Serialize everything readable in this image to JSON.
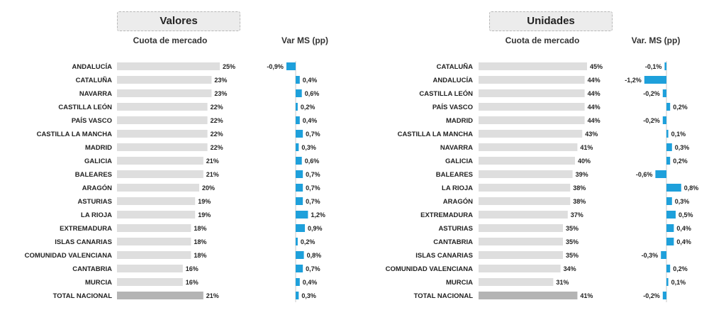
{
  "chart_data": [
    {
      "type": "bar",
      "title": "Valores",
      "share_label": "Cuota de mercado",
      "var_label": "Var MS (pp)",
      "categories": [
        "ANDALUCÍA",
        "CATALUÑA",
        "NAVARRA",
        "CASTILLA LEÓN",
        "PAÍS VASCO",
        "CASTILLA LA MANCHA",
        "MADRID",
        "GALICIA",
        "BALEARES",
        "ARAGÓN",
        "ASTURIAS",
        "LA RIOJA",
        "EXTREMADURA",
        "ISLAS CANARIAS",
        "COMUNIDAD VALENCIANA",
        "CANTABRIA",
        "MURCIA",
        "TOTAL NACIONAL"
      ],
      "series": [
        {
          "name": "Cuota de mercado",
          "values": [
            25,
            23,
            23,
            22,
            22,
            22,
            22,
            21,
            21,
            20,
            19,
            19,
            18,
            18,
            18,
            16,
            16,
            21
          ],
          "labels": [
            "25%",
            "23%",
            "23%",
            "22%",
            "22%",
            "22%",
            "22%",
            "21%",
            "21%",
            "20%",
            "19%",
            "19%",
            "18%",
            "18%",
            "18%",
            "16%",
            "16%",
            "21%"
          ]
        },
        {
          "name": "Var MS (pp)",
          "values": [
            -0.9,
            0.4,
            0.6,
            0.2,
            0.4,
            0.7,
            0.3,
            0.6,
            0.7,
            0.7,
            0.7,
            1.2,
            0.9,
            0.2,
            0.8,
            0.7,
            0.4,
            0.3
          ],
          "labels": [
            "-0,9%",
            "0,4%",
            "0,6%",
            "0,2%",
            "0,4%",
            "0,7%",
            "0,3%",
            "0,6%",
            "0,7%",
            "0,7%",
            "0,7%",
            "1,2%",
            "0,9%",
            "0,2%",
            "0,8%",
            "0,7%",
            "0,4%",
            "0,3%"
          ]
        }
      ],
      "colors": {
        "share": "#dedede",
        "total": "#b4b4b4",
        "var": "#1ea0db"
      }
    },
    {
      "type": "bar",
      "title": "Unidades",
      "share_label": "Cuota de mercado",
      "var_label": "Var. MS (pp)",
      "categories": [
        "CATALUÑA",
        "ANDALUCÍA",
        "CASTILLA LEÓN",
        "PAÍS VASCO",
        "MADRID",
        "CASTILLA LA MANCHA",
        "NAVARRA",
        "GALICIA",
        "BALEARES",
        "LA RIOJA",
        "ARAGÓN",
        "EXTREMADURA",
        "ASTURIAS",
        "CANTABRIA",
        "ISLAS CANARIAS",
        "COMUNIDAD VALENCIANA",
        "MURCIA",
        "TOTAL NACIONAL"
      ],
      "series": [
        {
          "name": "Cuota de mercado",
          "values": [
            45,
            44,
            44,
            44,
            44,
            43,
            41,
            40,
            39,
            38,
            38,
            37,
            35,
            35,
            35,
            34,
            31,
            41
          ],
          "labels": [
            "45%",
            "44%",
            "44%",
            "44%",
            "44%",
            "43%",
            "41%",
            "40%",
            "39%",
            "38%",
            "38%",
            "37%",
            "35%",
            "35%",
            "35%",
            "34%",
            "31%",
            "41%"
          ]
        },
        {
          "name": "Var. MS (pp)",
          "values": [
            -0.1,
            -1.2,
            -0.2,
            0.2,
            -0.2,
            0.1,
            0.3,
            0.2,
            -0.6,
            0.8,
            0.3,
            0.5,
            0.4,
            0.4,
            -0.3,
            0.2,
            0.1,
            -0.2
          ],
          "labels": [
            "-0,1%",
            "-1,2%",
            "-0,2%",
            "0,2%",
            "-0,2%",
            "0,1%",
            "0,3%",
            "0,2%",
            "-0,6%",
            "0,8%",
            "0,3%",
            "0,5%",
            "0,4%",
            "0,4%",
            "-0,3%",
            "0,2%",
            "0,1%",
            "-0,2%"
          ]
        }
      ],
      "colors": {
        "share": "#dedede",
        "total": "#b4b4b4",
        "var": "#1ea0db"
      }
    }
  ]
}
